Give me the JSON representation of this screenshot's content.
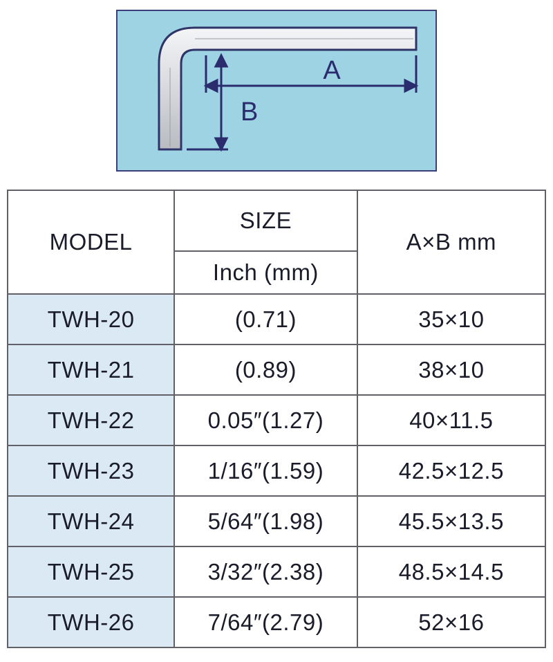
{
  "diagram": {
    "background_color": "#9ed3e4",
    "border_color": "#3a3f7a",
    "label_A": "A",
    "label_B": "B",
    "label_font_color": "#2a2c6e",
    "wrench_outline_color": "#2f3468",
    "wrench_fill_top": "#f4f5f7",
    "wrench_fill_bottom": "#b8bbc0",
    "arrow_color": "#2a2c6e"
  },
  "table": {
    "header": {
      "model": "MODEL",
      "size": "SIZE",
      "size_sub": "Inch (mm)",
      "ab": "A×B mm"
    },
    "colors": {
      "border": "#606066",
      "text": "#1a1c2a",
      "model_bg": "#dbe9f4",
      "cell_bg": "#ffffff"
    },
    "font_size_pt": 25,
    "rows": [
      {
        "model": "TWH-20",
        "size": "(0.71)",
        "ab": "35×10"
      },
      {
        "model": "TWH-21",
        "size": "(0.89)",
        "ab": "38×10"
      },
      {
        "model": "TWH-22",
        "size": "0.05″(1.27)",
        "ab": "40×11.5"
      },
      {
        "model": "TWH-23",
        "size": "1/16″(1.59)",
        "ab": "42.5×12.5"
      },
      {
        "model": "TWH-24",
        "size": "5/64″(1.98)",
        "ab": "45.5×13.5"
      },
      {
        "model": "TWH-25",
        "size": "3/32″(2.38)",
        "ab": "48.5×14.5"
      },
      {
        "model": "TWH-26",
        "size": "7/64″(2.79)",
        "ab": "52×16"
      }
    ]
  }
}
